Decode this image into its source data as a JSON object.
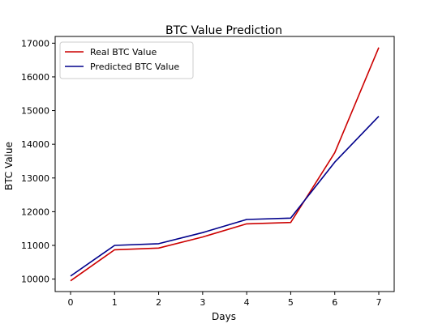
{
  "chart_data": {
    "type": "line",
    "title": "BTC Value Prediction",
    "xlabel": "Days",
    "ylabel": "BTC Value",
    "x": [
      0,
      1,
      2,
      3,
      4,
      5,
      6,
      7
    ],
    "x_ticks": [
      "0",
      "1",
      "2",
      "3",
      "4",
      "5",
      "6",
      "7"
    ],
    "y_ticks": [
      "10000",
      "11000",
      "12000",
      "13000",
      "14000",
      "15000",
      "16000",
      "17000"
    ],
    "xlim": [
      -0.35,
      7.35
    ],
    "ylim": [
      9630,
      17200
    ],
    "grid": false,
    "legend_position": "upper-left",
    "series": [
      {
        "name": "Real BTC Value",
        "color": "#cc0000",
        "values": [
          9950,
          10870,
          10920,
          11250,
          11640,
          11680,
          13750,
          16870
        ]
      },
      {
        "name": "Predicted BTC Value",
        "color": "#00008b",
        "values": [
          10090,
          11000,
          11050,
          11380,
          11770,
          11810,
          13470,
          14830
        ]
      }
    ]
  }
}
